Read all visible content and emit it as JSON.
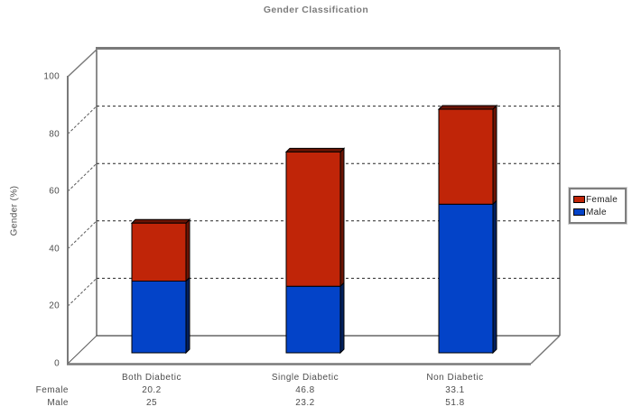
{
  "chart_data": {
    "type": "bar",
    "stacked": true,
    "projection": "3d",
    "title": "Gender Classification",
    "ylabel": "Gender (%)",
    "ylim": [
      0,
      100
    ],
    "yticks": [
      0,
      20,
      40,
      60,
      80,
      100
    ],
    "grid": "dashed-horizontal",
    "legend_position": "right",
    "categories": [
      "Both Diabetic",
      "Single Diabetic",
      "Non Diabetic"
    ],
    "series": [
      {
        "name": "Female",
        "color": "#c02508",
        "dark_color": "#6b1404",
        "values": [
          20.2,
          46.8,
          33.1
        ]
      },
      {
        "name": "Male",
        "color": "#0343c8",
        "dark_color": "#02205e",
        "values": [
          25,
          23.2,
          51.8
        ]
      }
    ],
    "wall_edge_color": "#7a7a7a",
    "frame_color": "#1a1a1a"
  }
}
